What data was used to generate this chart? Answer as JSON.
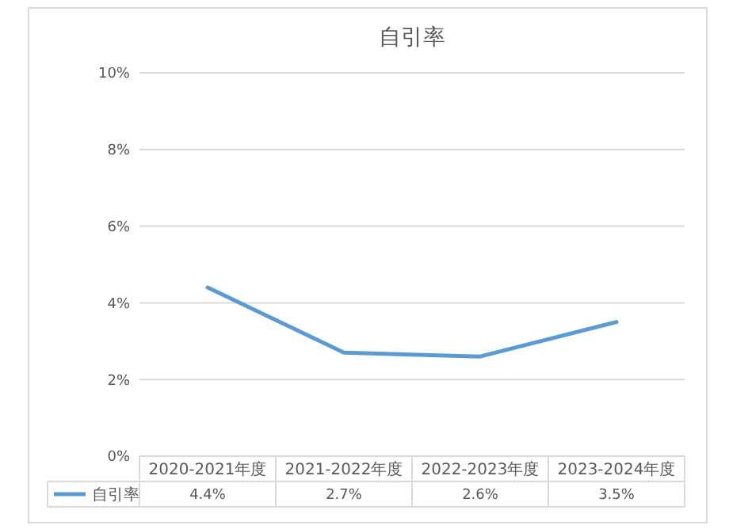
{
  "chart_data": {
    "type": "line",
    "title": "自引率",
    "categories": [
      "2020-2021年度",
      "2021-2022年度",
      "2022-2023年度",
      "2023-2024年度"
    ],
    "series": [
      {
        "name": "自引率",
        "color": "#5b9bd5",
        "values": [
          4.4,
          2.7,
          2.6,
          3.5
        ],
        "value_labels": [
          "4.4%",
          "2.7%",
          "2.6%",
          "3.5%"
        ]
      }
    ],
    "ylim": [
      0,
      10
    ],
    "yticks": [
      {
        "value": 0,
        "label": "0%"
      },
      {
        "value": 2,
        "label": "2%"
      },
      {
        "value": 4,
        "label": "4%"
      },
      {
        "value": 6,
        "label": "6%"
      },
      {
        "value": 8,
        "label": "8%"
      },
      {
        "value": 10,
        "label": "10%"
      }
    ],
    "grid": "y",
    "legend": "bottom",
    "marker": "none",
    "line_style": "solid"
  }
}
